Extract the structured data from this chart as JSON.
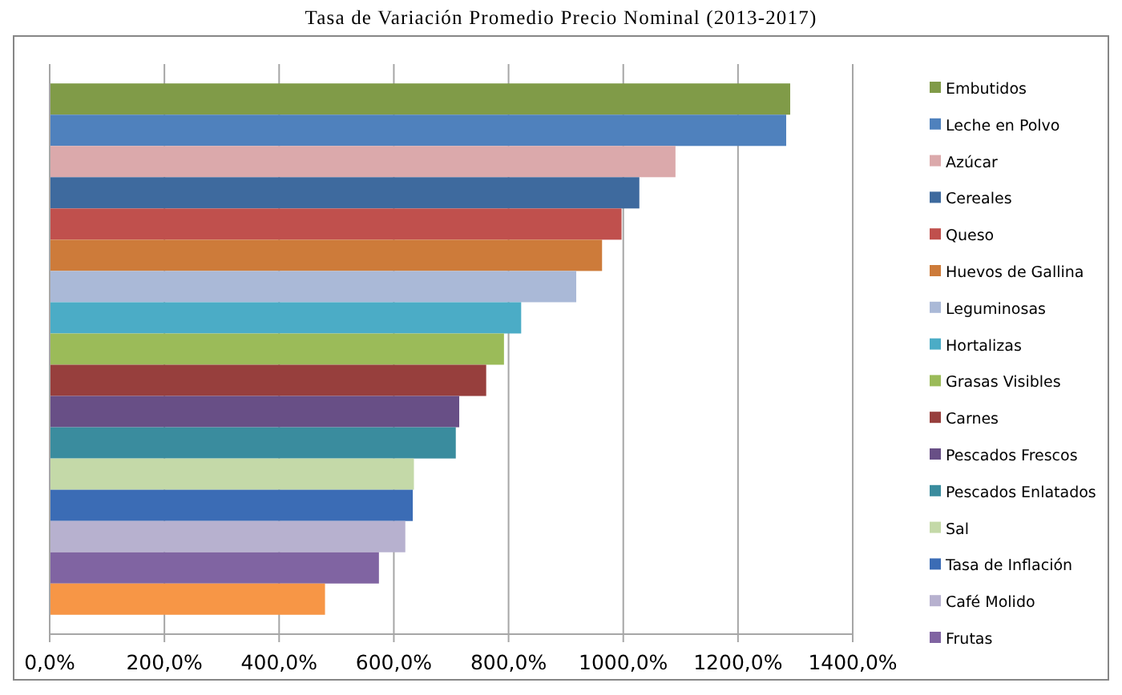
{
  "chart_data": {
    "type": "bar",
    "orientation": "horizontal",
    "title": "Tasa de Variación Promedio Precio Nominal (2013-2017)",
    "categories": [
      null,
      null,
      null,
      null,
      null,
      null,
      null,
      null,
      null,
      null,
      null,
      null,
      null,
      null,
      null,
      null,
      null
    ],
    "xlim": [
      0,
      1400
    ],
    "xticks": [
      {
        "value": 0,
        "label": "0,0%"
      },
      {
        "value": 200,
        "label": "200,0%"
      },
      {
        "value": 400,
        "label": "400,0%"
      },
      {
        "value": 600,
        "label": "600,0%"
      },
      {
        "value": 800,
        "label": "800,0%"
      },
      {
        "value": 1000,
        "label": "1000,0%"
      },
      {
        "value": 1200,
        "label": "1200,0%"
      },
      {
        "value": 1400,
        "label": "1400,0%"
      }
    ],
    "grid": "x",
    "legend": "right",
    "series": [
      {
        "name": "Embutidos",
        "color": "#809b48",
        "values": [
          1291,
          null,
          null,
          null,
          null,
          null,
          null,
          null,
          null,
          null,
          null,
          null,
          null,
          null,
          null,
          null,
          null
        ]
      },
      {
        "name": "Leche en Polvo",
        "color": "#4f81bd",
        "values": [
          null,
          1284,
          null,
          null,
          null,
          null,
          null,
          null,
          null,
          null,
          null,
          null,
          null,
          null,
          null,
          null,
          null
        ]
      },
      {
        "name": "Azúcar",
        "color": "#dba9ab",
        "values": [
          null,
          null,
          1091,
          null,
          null,
          null,
          null,
          null,
          null,
          null,
          null,
          null,
          null,
          null,
          null,
          null,
          null
        ]
      },
      {
        "name": "Cereales",
        "color": "#3e6a9e",
        "values": [
          null,
          null,
          null,
          1028,
          null,
          null,
          null,
          null,
          null,
          null,
          null,
          null,
          null,
          null,
          null,
          null,
          null
        ]
      },
      {
        "name": "Queso",
        "color": "#c0504d",
        "values": [
          null,
          null,
          null,
          null,
          997,
          null,
          null,
          null,
          null,
          null,
          null,
          null,
          null,
          null,
          null,
          null,
          null
        ]
      },
      {
        "name": "Huevos de Gallina",
        "color": "#cd7b3a",
        "values": [
          null,
          null,
          null,
          null,
          null,
          963,
          null,
          null,
          null,
          null,
          null,
          null,
          null,
          null,
          null,
          null,
          null
        ]
      },
      {
        "name": "Leguminosas",
        "color": "#aab9d7",
        "values": [
          null,
          null,
          null,
          null,
          null,
          null,
          918,
          null,
          null,
          null,
          null,
          null,
          null,
          null,
          null,
          null,
          null
        ]
      },
      {
        "name": "Hortalizas",
        "color": "#4bacc6",
        "values": [
          null,
          null,
          null,
          null,
          null,
          null,
          null,
          822,
          null,
          null,
          null,
          null,
          null,
          null,
          null,
          null,
          null
        ]
      },
      {
        "name": "Grasas Visibles",
        "color": "#9bbb59",
        "values": [
          null,
          null,
          null,
          null,
          null,
          null,
          null,
          null,
          792,
          null,
          null,
          null,
          null,
          null,
          null,
          null,
          null
        ]
      },
      {
        "name": "Carnes",
        "color": "#973f3d",
        "values": [
          null,
          null,
          null,
          null,
          null,
          null,
          null,
          null,
          null,
          761,
          null,
          null,
          null,
          null,
          null,
          null,
          null
        ]
      },
      {
        "name": "Pescados Frescos",
        "color": "#684f86",
        "values": [
          null,
          null,
          null,
          null,
          null,
          null,
          null,
          null,
          null,
          null,
          714,
          null,
          null,
          null,
          null,
          null,
          null
        ]
      },
      {
        "name": "Pescados Enlatados",
        "color": "#3a8c9e",
        "values": [
          null,
          null,
          null,
          null,
          null,
          null,
          null,
          null,
          null,
          null,
          null,
          708,
          null,
          null,
          null,
          null,
          null
        ]
      },
      {
        "name": "Sal",
        "color": "#c4d9a8",
        "values": [
          null,
          null,
          null,
          null,
          null,
          null,
          null,
          null,
          null,
          null,
          null,
          null,
          635,
          null,
          null,
          null,
          null
        ]
      },
      {
        "name": "Tasa de Inflación",
        "color": "#3b6cb5",
        "values": [
          null,
          null,
          null,
          null,
          null,
          null,
          null,
          null,
          null,
          null,
          null,
          null,
          null,
          633,
          null,
          null,
          null
        ]
      },
      {
        "name": "Café Molido",
        "color": "#b7b1cf",
        "values": [
          null,
          null,
          null,
          null,
          null,
          null,
          null,
          null,
          null,
          null,
          null,
          null,
          null,
          null,
          620,
          null,
          null
        ]
      },
      {
        "name": "Frutas",
        "color": "#8064a2",
        "values": [
          null,
          null,
          null,
          null,
          null,
          null,
          null,
          null,
          null,
          null,
          null,
          null,
          null,
          null,
          null,
          574,
          null
        ]
      },
      {
        "color": "#f79646",
        "values": [
          null,
          null,
          null,
          null,
          null,
          null,
          null,
          null,
          null,
          null,
          null,
          null,
          null,
          null,
          null,
          null,
          480
        ]
      }
    ]
  }
}
